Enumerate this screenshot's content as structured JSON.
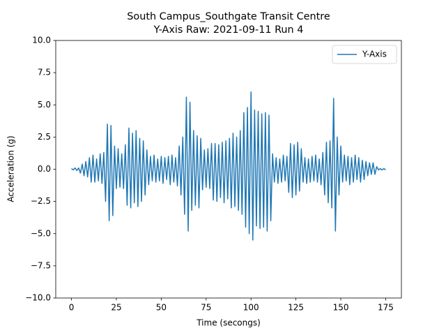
{
  "chart_data": {
    "type": "line",
    "title": "South Campus_Southgate Transit Centre",
    "subtitle": "Y-Axis Raw: 2021-09-11 Run 4",
    "x_label": "Time (secongs)",
    "y_label": "Acceleration (g)",
    "xlim": [
      -8.75,
      183.75
    ],
    "ylim": [
      -10,
      10
    ],
    "xticks": [
      0,
      25,
      50,
      75,
      100,
      125,
      150,
      175
    ],
    "yticks": [
      {
        "value": -10,
        "label": "−10.0"
      },
      {
        "value": -7.5,
        "label": "−7.5"
      },
      {
        "value": -5,
        "label": "−5.0"
      },
      {
        "value": -2.5,
        "label": "−2.5"
      },
      {
        "value": 0,
        "label": "0.0"
      },
      {
        "value": 2.5,
        "label": "2.5"
      },
      {
        "value": 5,
        "label": "5.0"
      },
      {
        "value": 7.5,
        "label": "7.5"
      },
      {
        "value": 10,
        "label": "10.0"
      }
    ],
    "grid": false,
    "legend": "upper right",
    "x": [
      0,
      1,
      2,
      3,
      4,
      5,
      6,
      7,
      8,
      9,
      10,
      11,
      12,
      13,
      14,
      15,
      16,
      17,
      18,
      19,
      20,
      21,
      22,
      23,
      24,
      25,
      26,
      27,
      28,
      29,
      30,
      31,
      32,
      33,
      34,
      35,
      36,
      37,
      38,
      39,
      40,
      41,
      42,
      43,
      44,
      45,
      46,
      47,
      48,
      49,
      50,
      51,
      52,
      53,
      54,
      55,
      56,
      57,
      58,
      59,
      60,
      61,
      62,
      63,
      64,
      65,
      66,
      67,
      68,
      69,
      70,
      71,
      72,
      73,
      74,
      75,
      76,
      77,
      78,
      79,
      80,
      81,
      82,
      83,
      84,
      85,
      86,
      87,
      88,
      89,
      90,
      91,
      92,
      93,
      94,
      95,
      96,
      97,
      98,
      99,
      100,
      101,
      102,
      103,
      104,
      105,
      106,
      107,
      108,
      109,
      110,
      111,
      112,
      113,
      114,
      115,
      116,
      117,
      118,
      119,
      120,
      121,
      122,
      123,
      124,
      125,
      126,
      127,
      128,
      129,
      130,
      131,
      132,
      133,
      134,
      135,
      136,
      137,
      138,
      139,
      140,
      141,
      142,
      143,
      144,
      145,
      146,
      147,
      148,
      149,
      150,
      151,
      152,
      153,
      154,
      155,
      156,
      157,
      158,
      159,
      160,
      161,
      162,
      163,
      164,
      165,
      166,
      167,
      168,
      169,
      170,
      171,
      172,
      173,
      174,
      175
    ],
    "series": [
      {
        "name": "Y-Axis",
        "color": "#1f77b4",
        "values": [
          0.05,
          -0.05,
          0.1,
          -0.1,
          0.1,
          -0.3,
          0.4,
          -0.5,
          0.6,
          -0.6,
          0.9,
          -1.0,
          1.1,
          -1.0,
          0.8,
          -0.9,
          1.2,
          -1.1,
          1.3,
          -2.5,
          3.5,
          -4.0,
          3.4,
          -3.6,
          1.8,
          -1.5,
          1.6,
          -1.4,
          1.2,
          -1.5,
          1.9,
          -2.8,
          3.2,
          -3.0,
          2.8,
          -2.6,
          3.0,
          -2.9,
          2.4,
          -2.5,
          2.2,
          -2.0,
          1.5,
          -1.2,
          1.0,
          -0.9,
          1.1,
          -1.0,
          0.8,
          -0.9,
          1.0,
          -1.1,
          0.9,
          -0.8,
          1.0,
          -1.2,
          1.1,
          -1.0,
          0.9,
          -1.3,
          1.8,
          -2.0,
          2.5,
          -3.5,
          5.6,
          -4.8,
          5.2,
          -3.2,
          3.0,
          -2.8,
          2.6,
          -3.0,
          2.4,
          -1.6,
          1.5,
          -1.4,
          1.6,
          -1.5,
          2.0,
          -2.4,
          2.0,
          -2.5,
          1.9,
          -2.2,
          2.1,
          -2.6,
          2.2,
          -2.3,
          2.4,
          -3.0,
          2.8,
          -2.9,
          2.5,
          -3.2,
          3.0,
          -3.5,
          4.4,
          -4.5,
          4.8,
          -5.0,
          6.0,
          -5.5,
          4.6,
          -4.4,
          4.5,
          -4.6,
          4.3,
          -4.5,
          4.4,
          -4.8,
          4.2,
          -4.0,
          1.2,
          -1.0,
          0.9,
          -1.1,
          0.8,
          -1.0,
          1.1,
          -0.9,
          1.0,
          -1.8,
          2.0,
          -2.2,
          1.9,
          -2.0,
          2.1,
          -1.7,
          1.6,
          -1.0,
          0.9,
          -1.1,
          0.8,
          -1.0,
          1.0,
          -0.9,
          1.1,
          -1.0,
          0.8,
          -1.2,
          1.3,
          -2.0,
          2.1,
          -2.6,
          2.2,
          -3.0,
          5.5,
          -4.8,
          2.5,
          -2.0,
          1.8,
          -1.0,
          1.1,
          -0.9,
          1.0,
          -1.2,
          0.9,
          -1.0,
          1.1,
          -0.8,
          0.9,
          -1.0,
          0.7,
          -0.8,
          0.6,
          -0.5,
          0.5,
          -0.4,
          0.5,
          -0.4,
          0.2,
          -0.05,
          0.05,
          -0.05,
          0.05,
          -0.05
        ]
      }
    ]
  }
}
